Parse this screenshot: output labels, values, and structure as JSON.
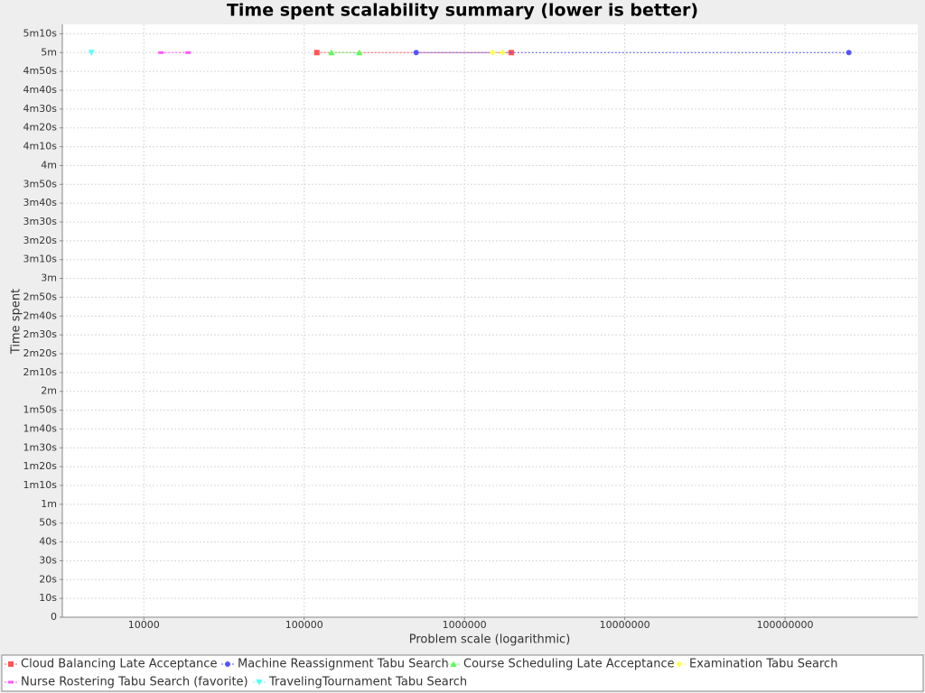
{
  "chart_data": {
    "type": "line",
    "title": "Time spent scalability summary (lower is better)",
    "x_label": "Problem scale (logarithmic)",
    "y_label": "Time spent",
    "xscale": "log",
    "grid": true,
    "legend": "bottom",
    "xlim": [
      3100,
      673000000
    ],
    "xticks": [
      10000,
      100000,
      1000000,
      10000000,
      100000000
    ],
    "ylim": [
      0,
      315
    ],
    "yticks": [
      0,
      {
        "value": 10,
        "label": "10s"
      },
      {
        "value": 20,
        "label": "20s"
      },
      {
        "value": 30,
        "label": "30s"
      },
      {
        "value": 40,
        "label": "40s"
      },
      {
        "value": 50,
        "label": "50s"
      },
      {
        "value": 60,
        "label": "1m"
      },
      {
        "value": 70,
        "label": "1m10s"
      },
      {
        "value": 80,
        "label": "1m20s"
      },
      {
        "value": 90,
        "label": "1m30s"
      },
      {
        "value": 100,
        "label": "1m40s"
      },
      {
        "value": 110,
        "label": "1m50s"
      },
      {
        "value": 120,
        "label": "2m"
      },
      {
        "value": 130,
        "label": "2m10s"
      },
      {
        "value": 140,
        "label": "2m20s"
      },
      {
        "value": 150,
        "label": "2m30s"
      },
      {
        "value": 160,
        "label": "2m40s"
      },
      {
        "value": 170,
        "label": "2m50s"
      },
      {
        "value": 180,
        "label": "3m"
      },
      {
        "value": 190,
        "label": "3m10s"
      },
      {
        "value": 200,
        "label": "3m20s"
      },
      {
        "value": 210,
        "label": "3m30s"
      },
      {
        "value": 220,
        "label": "3m40s"
      },
      {
        "value": 230,
        "label": "3m50s"
      },
      {
        "value": 240,
        "label": "4m"
      },
      {
        "value": 250,
        "label": "4m10s"
      },
      {
        "value": 260,
        "label": "4m20s"
      },
      {
        "value": 270,
        "label": "4m30s"
      },
      {
        "value": 280,
        "label": "4m40s"
      },
      {
        "value": 290,
        "label": "4m50s"
      },
      {
        "value": 300,
        "label": "5m"
      },
      {
        "value": 310,
        "label": "5m10s"
      }
    ],
    "series": [
      {
        "name": "Cloud Balancing Late Acceptance",
        "color": "#ff5555",
        "marker": "square",
        "x": [
          120000,
          1960000
        ],
        "values": [
          300,
          300
        ]
      },
      {
        "name": "Machine Reassignment Tabu Search",
        "color": "#5555ff",
        "marker": "circle",
        "x": [
          500000,
          250000000
        ],
        "values": [
          300,
          300
        ]
      },
      {
        "name": "Course Scheduling Late Acceptance",
        "color": "#55ff55",
        "marker": "triangle-up",
        "x": [
          148000,
          221000
        ],
        "values": [
          300,
          300
        ]
      },
      {
        "name": "Examination Tabu Search",
        "color": "#ffff55",
        "marker": "diamond",
        "x": [
          1500000,
          1730000
        ],
        "values": [
          300,
          300
        ]
      },
      {
        "name": "Nurse Rostering Tabu Search (favorite)",
        "color": "#ff55ff",
        "marker": "bar",
        "x": [
          12800,
          18900
        ],
        "values": [
          300,
          300
        ]
      },
      {
        "name": "TravelingTournament Tabu Search",
        "color": "#55ffff",
        "marker": "triangle-down",
        "x": [
          4710
        ],
        "values": [
          300
        ]
      }
    ]
  }
}
